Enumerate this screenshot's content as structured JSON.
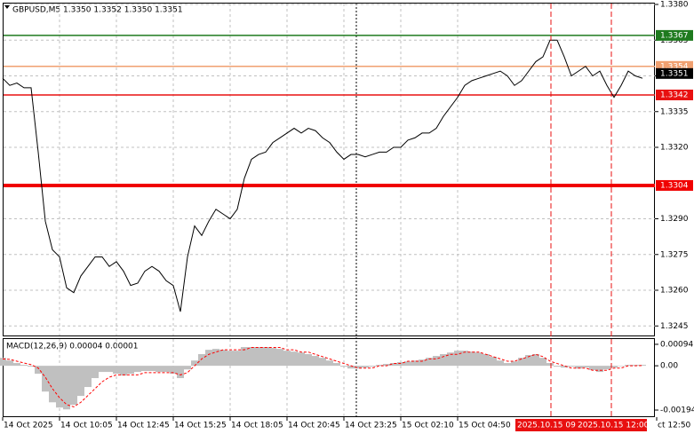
{
  "chart_data": [
    {
      "type": "line",
      "title": "GBPUSD,M5  1.3350 1.3352 1.3350 1.3351",
      "categories": [
        "14 Oct 2025",
        null,
        null,
        null,
        null,
        null,
        null,
        null,
        "14 Oct 10:05",
        null,
        null,
        null,
        null,
        null,
        null,
        null,
        "14 Oct 12:45",
        null,
        null,
        null,
        null,
        null,
        null,
        null,
        "14 Oct 15:25",
        null,
        null,
        null,
        null,
        null,
        null,
        null,
        "14 Oct 18:05",
        null,
        null,
        null,
        null,
        null,
        null,
        null,
        "14 Oct 20:45",
        null,
        null,
        null,
        null,
        null,
        null,
        null,
        "14 Oct 23:25",
        null,
        null,
        null,
        null,
        null,
        null,
        null,
        "15 Oct 02:10",
        null,
        null,
        null,
        null,
        null,
        null,
        null,
        "15 Oct 04:50",
        null,
        null,
        null,
        null,
        null,
        null,
        null,
        null,
        null,
        null,
        null,
        null,
        null,
        null,
        null,
        null,
        null,
        null,
        null,
        null,
        null,
        null,
        null,
        null,
        null,
        null,
        null,
        "ct 12:50"
      ],
      "values": [
        1.3349,
        1.3346,
        1.3347,
        1.3345,
        1.3345,
        1.3318,
        1.3289,
        1.3277,
        1.3274,
        1.3261,
        1.3259,
        1.3266,
        1.327,
        1.3274,
        1.3274,
        1.327,
        1.3272,
        1.3268,
        1.3262,
        1.3263,
        1.3268,
        1.327,
        1.3268,
        1.3264,
        1.3262,
        1.3251,
        1.3274,
        1.3287,
        1.3283,
        1.3289,
        1.3294,
        1.3292,
        1.329,
        1.3294,
        1.3307,
        1.3315,
        1.3317,
        1.3318,
        1.3322,
        1.3324,
        1.3326,
        1.3328,
        1.3326,
        1.3328,
        1.3327,
        1.3324,
        1.3322,
        1.3318,
        1.3315,
        1.3317,
        1.3317,
        1.3316,
        1.3317,
        1.3318,
        1.3318,
        1.332,
        1.332,
        1.3323,
        1.3324,
        1.3326,
        1.3326,
        1.3328,
        1.3333,
        1.3337,
        1.3341,
        1.3346,
        1.3348,
        1.3349,
        1.335,
        1.3351,
        1.3352,
        1.335,
        1.3346,
        1.3348,
        1.3352,
        1.3356,
        1.3358,
        1.3365,
        1.3365,
        1.3358,
        1.335,
        1.3352,
        1.3354,
        1.335,
        1.3352,
        1.3346,
        1.3341,
        1.3346,
        1.3352,
        1.335,
        1.3349,
        null,
        null
      ],
      "color": "#000000",
      "ylim": [
        1.3241,
        1.338
      ],
      "yticks": [
        {
          "value": 1.338,
          "label": "1.3380"
        },
        1.3365,
        {
          "value": 1.335,
          "label": "1.3350"
        },
        1.3335,
        {
          "value": 1.332,
          "label": "1.3320"
        },
        {
          "value": 1.329,
          "label": "1.3290"
        },
        1.3275,
        {
          "value": 1.326,
          "label": "1.3260"
        },
        1.3245
      ],
      "grid": true,
      "levels": [
        {
          "value": 1.3367,
          "color": "#1e7a1e"
        },
        {
          "value": 1.3354,
          "color": "#f0a070"
        },
        {
          "value": 1.3342,
          "color": "#e81010"
        },
        {
          "value": 1.3304,
          "color": "#f00000"
        }
      ],
      "current": {
        "value": 1.3351,
        "color": "#000000"
      },
      "markers": [
        {
          "label": "2025.10.15 09:",
          "color": "#e81010"
        },
        {
          "label": "2025.10.15 12:00",
          "color": "#e81010"
        }
      ]
    },
    {
      "type": "bar",
      "title": "MACD(12,26,9) 0.00004 0.00001",
      "values": [
        0.00035,
        0.00023,
        0.00012,
        4e-05,
        -4e-05,
        -0.00035,
        -0.00113,
        -0.0016,
        -0.00183,
        -0.00191,
        -0.00171,
        -0.00132,
        -0.00093,
        -0.00054,
        -0.00027,
        -0.00027,
        -0.00035,
        -0.00043,
        -0.00035,
        -0.00027,
        -0.00023,
        -0.00023,
        -0.00027,
        -0.00027,
        -0.00035,
        -0.00054,
        -0.00016,
        0.00023,
        0.00051,
        0.0007,
        0.00074,
        0.0007,
        0.00066,
        0.00066,
        0.00082,
        0.00082,
        0.00082,
        0.00082,
        0.00078,
        0.00074,
        0.00066,
        0.00062,
        0.00058,
        0.00051,
        0.00043,
        0.00035,
        0.00023,
        0.00012,
        -4e-05,
        -0.00012,
        -0.00012,
        -8e-05,
        -4e-05,
        4e-05,
        8e-05,
        0.00012,
        0.00016,
        0.00019,
        0.00023,
        0.00027,
        0.00035,
        0.00043,
        0.00051,
        0.00058,
        0.00066,
        0.00066,
        0.00062,
        0.00058,
        0.00051,
        0.00039,
        0.00023,
        0.00012,
        0.00019,
        0.00035,
        0.00047,
        0.00051,
        0.00035,
        0.00012,
        -4e-05,
        -8e-05,
        -4e-05,
        -0.00012,
        -8e-05,
        -0.00019,
        -0.00027,
        -0.00016,
        -8e-05,
        0,
        4e-05,
        4e-05,
        4e-05,
        null,
        null
      ],
      "color": "#c0c0c0",
      "signal": {
        "color": "#ff0000",
        "values": [
          0.0003,
          0.00028,
          0.0002,
          0.00012,
          5e-05,
          -0.0001,
          -0.0005,
          -0.001,
          -0.0014,
          -0.0017,
          -0.0018,
          -0.0016,
          -0.0013,
          -0.001,
          -0.0007,
          -0.0005,
          -0.0004,
          -0.0004,
          -0.0004,
          -0.0004,
          -0.0003,
          -0.0003,
          -0.0003,
          -0.0003,
          -0.0003,
          -0.0004,
          -0.0003,
          0,
          0.0003,
          0.0005,
          0.0006,
          0.0007,
          0.0007,
          0.0007,
          0.0007,
          0.0008,
          0.0008,
          0.0008,
          0.0008,
          0.0008,
          0.0007,
          0.0007,
          0.0006,
          0.0006,
          0.0005,
          0.0004,
          0.0003,
          0.0002,
          0.0001,
          0,
          -0.0001,
          -0.0001,
          -0.0001,
          0,
          0,
          0.0001,
          0.0001,
          0.0002,
          0.0002,
          0.0002,
          0.0003,
          0.0003,
          0.0004,
          0.0005,
          0.0005,
          0.0006,
          0.0006,
          0.0006,
          0.0005,
          0.0004,
          0.0003,
          0.0002,
          0.0002,
          0.0003,
          0.0004,
          0.0005,
          0.0004,
          0.0002,
          0.0001,
          0,
          -0.0001,
          -0.0001,
          -0.0001,
          -0.0002,
          -0.0002,
          -0.0002,
          -0.0001,
          -0.0001,
          0,
          0,
          1e-05,
          null,
          null
        ]
      },
      "ylim": [
        -0.00225,
        0.00121
      ],
      "yticks": [
        0.00094,
        {
          "value": 0,
          "label": "0.00"
        },
        -0.00194
      ]
    }
  ]
}
